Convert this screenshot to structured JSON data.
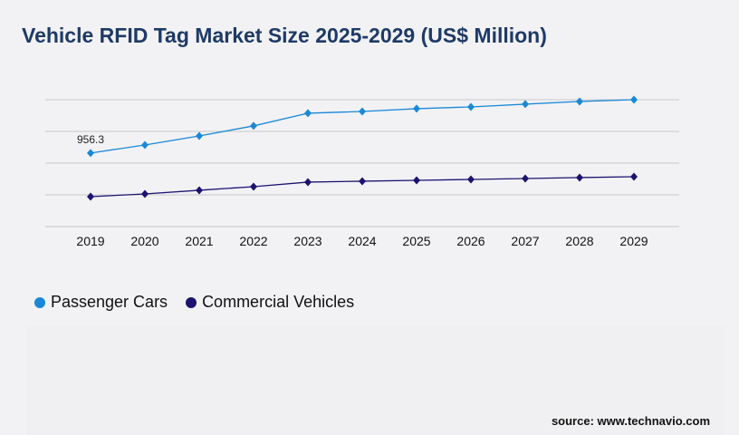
{
  "chart_data": {
    "type": "line",
    "title": "Vehicle RFID Tag Market Size 2025-2029 (US$ Million)",
    "categories": [
      "2019",
      "2020",
      "2021",
      "2022",
      "2023",
      "2024",
      "2025",
      "2026",
      "2027",
      "2028",
      "2029"
    ],
    "series": [
      {
        "name": "Passenger Cars",
        "color": "#1a88d6",
        "values": [
          956.3,
          1061,
          1179,
          1309,
          1474,
          1497,
          1533,
          1556,
          1592,
          1627,
          1650
        ]
      },
      {
        "name": "Commercial Vehicles",
        "color": "#1c1370",
        "values": [
          389,
          424,
          472,
          519,
          578,
          590,
          601,
          613,
          625,
          637,
          648
        ]
      }
    ],
    "data_labels": [
      {
        "series": 0,
        "index": 0,
        "text": "956.3"
      }
    ],
    "ylim": [
      0,
      1650
    ],
    "grid": true,
    "legend": "bottom-left"
  },
  "source": "source: www.technavio.com"
}
